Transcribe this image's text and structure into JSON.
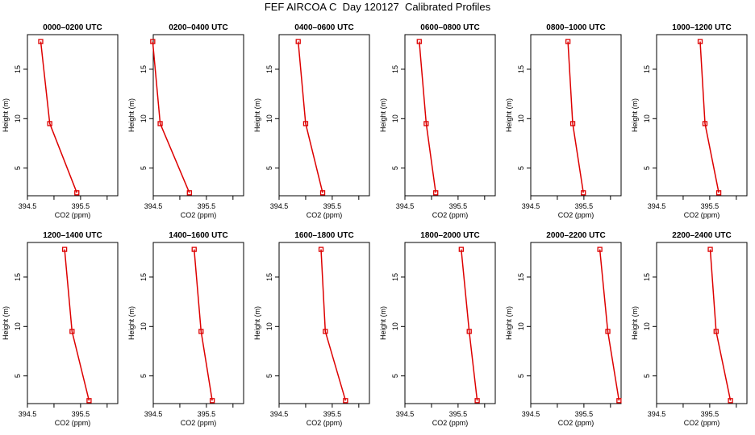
{
  "figure": {
    "title": "FEF AIRCOA C  Day 120127  Calibrated Profiles"
  },
  "colors": {
    "series": "#dd0000",
    "axis": "#000000"
  },
  "chart_data": [
    {
      "type": "line",
      "title": "0000–0200 UTC",
      "xlabel": "CO2 (ppm)",
      "ylabel": "Height (m)",
      "xlim": [
        394.5,
        396.2
      ],
      "ylim": [
        2.2,
        18.5
      ],
      "xticks": [
        394.5,
        395.0,
        395.5,
        396.0
      ],
      "xtick_labels": [
        "394.5",
        "",
        "395.5",
        ""
      ],
      "yticks": [
        5,
        10,
        15
      ],
      "ytick_labels": [
        "5",
        "10",
        "15"
      ],
      "series": [
        {
          "x": [
            395.43,
            394.92,
            394.75
          ],
          "y": [
            2.5,
            9.5,
            17.8
          ]
        }
      ]
    },
    {
      "type": "line",
      "title": "0200–0400 UTC",
      "xlabel": "CO2 (ppm)",
      "ylabel": "Height (m)",
      "xlim": [
        394.5,
        396.2
      ],
      "ylim": [
        2.2,
        18.5
      ],
      "xticks": [
        394.5,
        395.0,
        395.5,
        396.0
      ],
      "xtick_labels": [
        "394.5",
        "",
        "395.5",
        ""
      ],
      "yticks": [
        5,
        10,
        15
      ],
      "ytick_labels": [
        "5",
        "10",
        "15"
      ],
      "series": [
        {
          "x": [
            395.18,
            394.63,
            394.49
          ],
          "y": [
            2.5,
            9.5,
            17.8
          ]
        }
      ]
    },
    {
      "type": "line",
      "title": "0400–0600 UTC",
      "xlabel": "CO2 (ppm)",
      "ylabel": "Height (m)",
      "xlim": [
        394.5,
        396.2
      ],
      "ylim": [
        2.2,
        18.5
      ],
      "xticks": [
        394.5,
        395.0,
        395.5,
        396.0
      ],
      "xtick_labels": [
        "394.5",
        "",
        "395.5",
        ""
      ],
      "yticks": [
        5,
        10,
        15
      ],
      "ytick_labels": [
        "5",
        "10",
        "15"
      ],
      "series": [
        {
          "x": [
            395.32,
            395.0,
            394.86
          ],
          "y": [
            2.5,
            9.5,
            17.8
          ]
        }
      ]
    },
    {
      "type": "line",
      "title": "0600–0800 UTC",
      "xlabel": "CO2 (ppm)",
      "ylabel": "Height (m)",
      "xlim": [
        394.5,
        396.2
      ],
      "ylim": [
        2.2,
        18.5
      ],
      "xticks": [
        394.5,
        395.0,
        395.5,
        396.0
      ],
      "xtick_labels": [
        "394.5",
        "",
        "395.5",
        ""
      ],
      "yticks": [
        5,
        10,
        15
      ],
      "ytick_labels": [
        "5",
        "10",
        "15"
      ],
      "series": [
        {
          "x": [
            395.08,
            394.9,
            394.77
          ],
          "y": [
            2.5,
            9.5,
            17.8
          ]
        }
      ]
    },
    {
      "type": "line",
      "title": "0800–1000 UTC",
      "xlabel": "CO2 (ppm)",
      "ylabel": "Height (m)",
      "xlim": [
        394.5,
        396.2
      ],
      "ylim": [
        2.2,
        18.5
      ],
      "xticks": [
        394.5,
        395.0,
        395.5,
        396.0
      ],
      "xtick_labels": [
        "394.5",
        "",
        "395.5",
        ""
      ],
      "yticks": [
        5,
        10,
        15
      ],
      "ytick_labels": [
        "5",
        "10",
        "15"
      ],
      "series": [
        {
          "x": [
            395.49,
            395.29,
            395.2
          ],
          "y": [
            2.5,
            9.5,
            17.8
          ]
        }
      ]
    },
    {
      "type": "line",
      "title": "1000–1200 UTC",
      "xlabel": "CO2 (ppm)",
      "ylabel": "Height (m)",
      "xlim": [
        394.5,
        396.2
      ],
      "ylim": [
        2.2,
        18.5
      ],
      "xticks": [
        394.5,
        395.0,
        395.5,
        396.0
      ],
      "xtick_labels": [
        "394.5",
        "",
        "395.5",
        ""
      ],
      "yticks": [
        5,
        10,
        15
      ],
      "ytick_labels": [
        "5",
        "10",
        "15"
      ],
      "series": [
        {
          "x": [
            395.67,
            395.41,
            395.32
          ],
          "y": [
            2.5,
            9.5,
            17.8
          ]
        }
      ]
    },
    {
      "type": "line",
      "title": "1200–1400 UTC",
      "xlabel": "CO2 (ppm)",
      "ylabel": "Height (m)",
      "xlim": [
        394.5,
        396.2
      ],
      "ylim": [
        2.2,
        18.5
      ],
      "xticks": [
        394.5,
        395.0,
        395.5,
        396.0
      ],
      "xtick_labels": [
        "394.5",
        "",
        "395.5",
        ""
      ],
      "yticks": [
        5,
        10,
        15
      ],
      "ytick_labels": [
        "5",
        "10",
        "15"
      ],
      "series": [
        {
          "x": [
            395.66,
            395.34,
            395.2
          ],
          "y": [
            2.5,
            9.5,
            17.8
          ]
        }
      ]
    },
    {
      "type": "line",
      "title": "1400–1600 UTC",
      "xlabel": "CO2 (ppm)",
      "ylabel": "Height (m)",
      "xlim": [
        394.5,
        396.2
      ],
      "ylim": [
        2.2,
        18.5
      ],
      "xticks": [
        394.5,
        395.0,
        395.5,
        396.0
      ],
      "xtick_labels": [
        "394.5",
        "",
        "395.5",
        ""
      ],
      "yticks": [
        5,
        10,
        15
      ],
      "ytick_labels": [
        "5",
        "10",
        "15"
      ],
      "series": [
        {
          "x": [
            395.61,
            395.4,
            395.27
          ],
          "y": [
            2.5,
            9.5,
            17.8
          ]
        }
      ]
    },
    {
      "type": "line",
      "title": "1600–1800 UTC",
      "xlabel": "CO2 (ppm)",
      "ylabel": "Height (m)",
      "xlim": [
        394.5,
        396.2
      ],
      "ylim": [
        2.2,
        18.5
      ],
      "xticks": [
        394.5,
        395.0,
        395.5,
        396.0
      ],
      "xtick_labels": [
        "394.5",
        "",
        "395.5",
        ""
      ],
      "yticks": [
        5,
        10,
        15
      ],
      "ytick_labels": [
        "5",
        "10",
        "15"
      ],
      "series": [
        {
          "x": [
            395.75,
            395.37,
            395.29
          ],
          "y": [
            2.5,
            9.5,
            17.8
          ]
        }
      ]
    },
    {
      "type": "line",
      "title": "1800–2000 UTC",
      "xlabel": "CO2 (ppm)",
      "ylabel": "Height (m)",
      "xlim": [
        394.5,
        396.2
      ],
      "ylim": [
        2.2,
        18.5
      ],
      "xticks": [
        394.5,
        395.0,
        395.5,
        396.0
      ],
      "xtick_labels": [
        "394.5",
        "",
        "395.5",
        ""
      ],
      "yticks": [
        5,
        10,
        15
      ],
      "ytick_labels": [
        "5",
        "10",
        "15"
      ],
      "series": [
        {
          "x": [
            395.86,
            395.71,
            395.56
          ],
          "y": [
            2.5,
            9.5,
            17.8
          ]
        }
      ]
    },
    {
      "type": "line",
      "title": "2000–2200 UTC",
      "xlabel": "CO2 (ppm)",
      "ylabel": "Height (m)",
      "xlim": [
        394.5,
        396.2
      ],
      "ylim": [
        2.2,
        18.5
      ],
      "xticks": [
        394.5,
        395.0,
        395.5,
        396.0
      ],
      "xtick_labels": [
        "394.5",
        "",
        "395.5",
        ""
      ],
      "yticks": [
        5,
        10,
        15
      ],
      "ytick_labels": [
        "5",
        "10",
        "15"
      ],
      "series": [
        {
          "x": [
            396.16,
            395.95,
            395.8
          ],
          "y": [
            2.5,
            9.5,
            17.8
          ]
        }
      ]
    },
    {
      "type": "line",
      "title": "2200–2400 UTC",
      "xlabel": "CO2 (ppm)",
      "ylabel": "Height (m)",
      "xlim": [
        394.5,
        396.2
      ],
      "ylim": [
        2.2,
        18.5
      ],
      "xticks": [
        394.5,
        395.0,
        395.5,
        396.0
      ],
      "xtick_labels": [
        "394.5",
        "",
        "395.5",
        ""
      ],
      "yticks": [
        5,
        10,
        15
      ],
      "ytick_labels": [
        "5",
        "10",
        "15"
      ],
      "series": [
        {
          "x": [
            395.89,
            395.62,
            395.51
          ],
          "y": [
            2.5,
            9.5,
            17.8
          ]
        }
      ]
    }
  ]
}
